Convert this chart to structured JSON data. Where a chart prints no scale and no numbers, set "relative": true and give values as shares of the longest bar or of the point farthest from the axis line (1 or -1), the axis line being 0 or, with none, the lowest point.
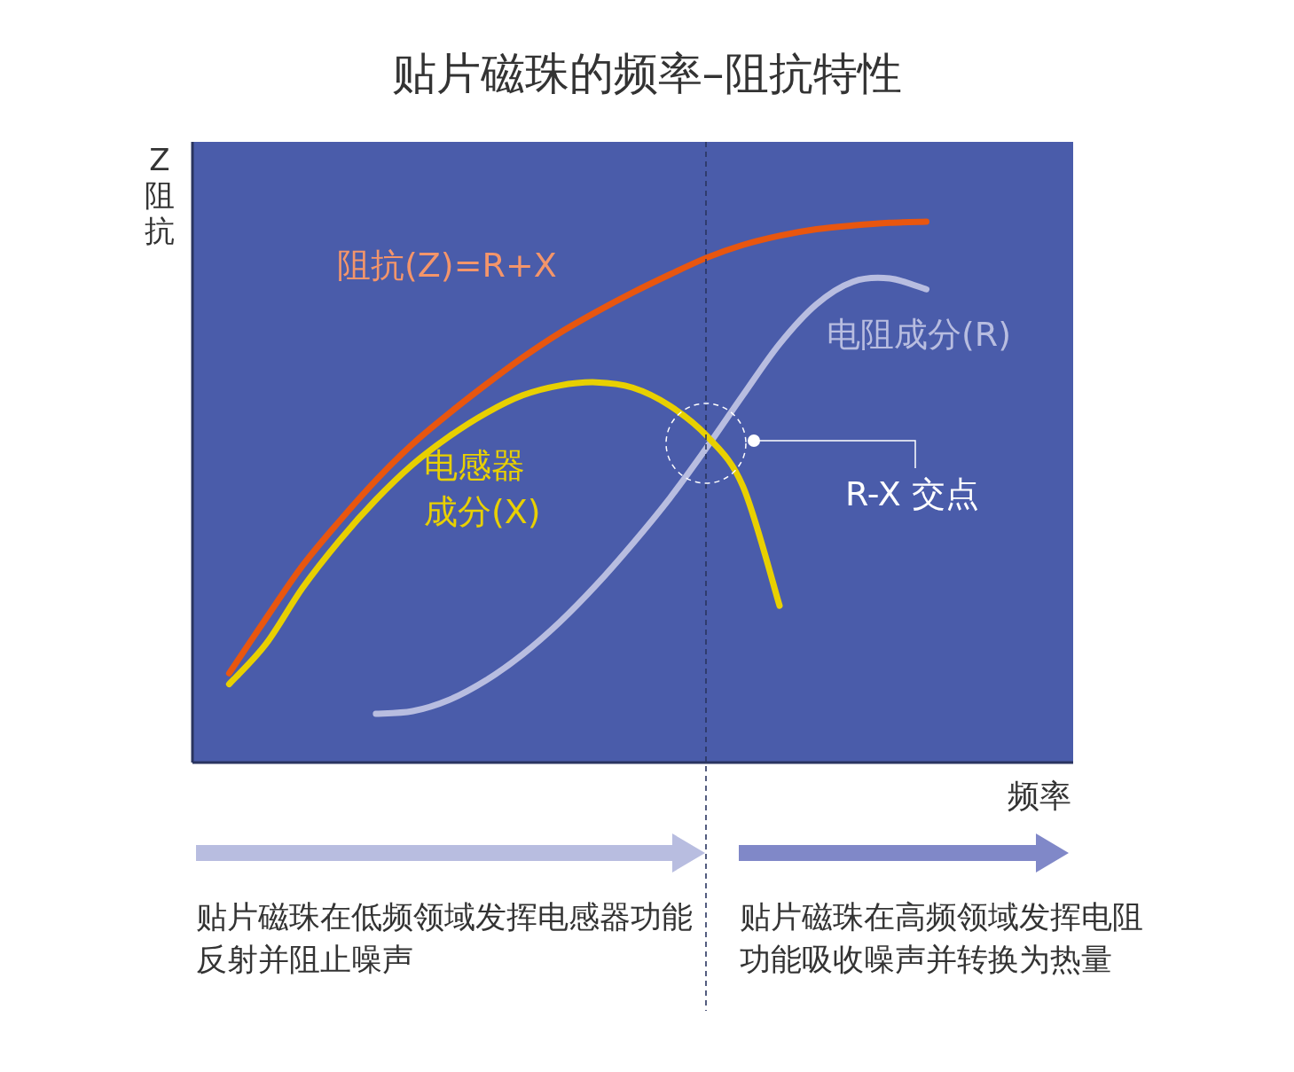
{
  "chart_data": {
    "type": "line",
    "title": "贴片磁珠的频率–阻抗特性",
    "xlabel": "频率",
    "ylabel": "Z阻抗",
    "relative": true,
    "categories": [
      null,
      null,
      null,
      null,
      null,
      null,
      null,
      null,
      null,
      null,
      null,
      null,
      null,
      null,
      null,
      null,
      null,
      null,
      null,
      null,
      null,
      null,
      null,
      null,
      null
    ],
    "series": [
      {
        "name": "阻抗(Z)=R+X",
        "color": "#e8560f",
        "values": [
          null,
          0.165,
          0.266,
          0.364,
          0.446,
          0.522,
          0.589,
          0.646,
          0.699,
          0.749,
          0.794,
          0.833,
          0.869,
          0.902,
          0.933,
          0.957,
          0.974,
          0.986,
          0.993,
          0.998,
          1.0,
          null,
          null,
          null,
          null
        ]
      },
      {
        "name": "电感器成分(X)",
        "color": "#e8d000",
        "values": [
          null,
          0.145,
          0.219,
          0.323,
          0.41,
          0.486,
          0.551,
          0.603,
          0.646,
          0.679,
          0.697,
          0.703,
          0.693,
          0.66,
          0.605,
          0.511,
          0.29,
          null,
          null,
          null,
          null,
          null,
          null,
          null,
          null
        ]
      },
      {
        "name": "电阻成分(R)",
        "color": "#b8bde0",
        "values": [
          null,
          null,
          null,
          null,
          null,
          0.09,
          0.095,
          0.116,
          0.152,
          0.2,
          0.259,
          0.328,
          0.405,
          0.488,
          0.581,
          0.679,
          0.774,
          0.847,
          0.889,
          0.895,
          0.875,
          null,
          null,
          null,
          null
        ]
      }
    ],
    "annotations": [
      "R-X 交点",
      "贴片磁珠在低频领域发挥电感器功能反射并阻止噪声",
      "贴片磁珠在高频领域发挥电阻功能吸收噪声并转换为热量"
    ]
  }
}
